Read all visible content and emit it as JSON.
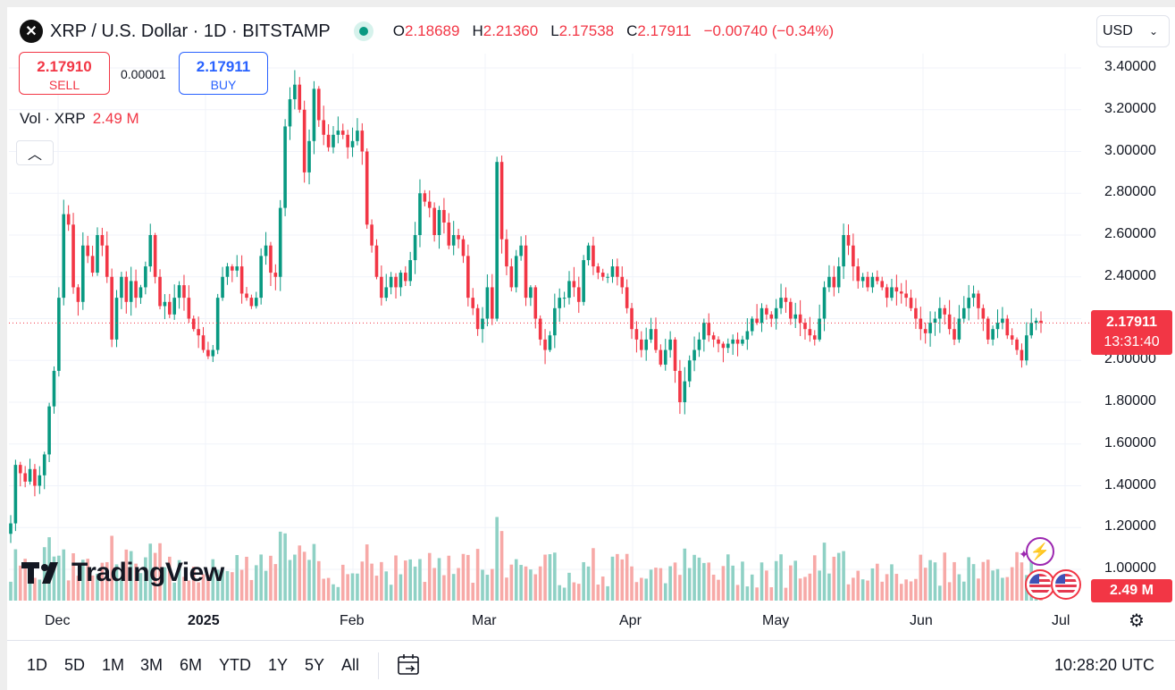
{
  "header": {
    "symbol_logo": "✕",
    "title": "XRP / U.S. Dollar · 1D · BITSTAMP",
    "ohlc": {
      "o_label": "O",
      "o": "2.18689",
      "h_label": "H",
      "h": "2.21360",
      "l_label": "L",
      "l": "2.17538",
      "c_label": "C",
      "c": "2.17911",
      "change": "−0.00740 (−0.34%)"
    }
  },
  "trade": {
    "sell_price": "2.17910",
    "sell_label": "SELL",
    "spread": "0.00001",
    "buy_price": "2.17911",
    "buy_label": "BUY"
  },
  "volume": {
    "label": "Vol · XRP",
    "value": "2.49 M"
  },
  "currency": {
    "value": "USD",
    "icon": "chevron-down-icon"
  },
  "price_axis": [
    "3.40000",
    "3.20000",
    "3.00000",
    "2.80000",
    "2.60000",
    "2.40000",
    "2.20000",
    "2.00000",
    "1.80000",
    "1.60000",
    "1.40000",
    "1.20000",
    "1.00000"
  ],
  "last_price": {
    "price": "2.17911",
    "countdown": "13:31:40"
  },
  "volume_tag": "2.49 M",
  "time_axis": [
    {
      "label": "Dec",
      "bold": false
    },
    {
      "label": "2025",
      "bold": true
    },
    {
      "label": "Feb",
      "bold": false
    },
    {
      "label": "Mar",
      "bold": false
    },
    {
      "label": "Apr",
      "bold": false
    },
    {
      "label": "May",
      "bold": false
    },
    {
      "label": "Jun",
      "bold": false
    },
    {
      "label": "Jul",
      "bold": false
    }
  ],
  "branding": {
    "name": "TradingView"
  },
  "ranges": [
    "1D",
    "5D",
    "1M",
    "3M",
    "6M",
    "YTD",
    "1Y",
    "5Y",
    "All"
  ],
  "clock": "10:28:20 UTC",
  "colors": {
    "up": "#089981",
    "down": "#f23645",
    "up_vol": "#8fd1c5",
    "down_vol": "#f7a9a7",
    "grid": "#f0f3fa",
    "text": "#131722"
  },
  "chart_data": {
    "type": "candlestick",
    "title": "XRP / U.S. Dollar · 1D · BITSTAMP",
    "ylim": [
      0.9,
      3.5
    ],
    "y_ticks": [
      3.4,
      3.2,
      3.0,
      2.8,
      2.6,
      2.4,
      2.2,
      2.0,
      1.8,
      1.6,
      1.4,
      1.2,
      1.0
    ],
    "x_ticks": [
      "Dec",
      "2025",
      "Feb",
      "Mar",
      "Apr",
      "May",
      "Jun",
      "Jul"
    ],
    "last_price": 2.17911,
    "closes": [
      1.22,
      1.5,
      1.46,
      1.42,
      1.48,
      1.4,
      1.45,
      1.55,
      1.78,
      1.95,
      2.3,
      2.7,
      2.65,
      2.35,
      2.28,
      2.55,
      2.5,
      2.42,
      2.6,
      2.55,
      2.4,
      2.1,
      2.3,
      2.4,
      2.28,
      2.38,
      2.3,
      2.35,
      2.45,
      2.6,
      2.4,
      2.26,
      2.28,
      2.22,
      2.3,
      2.36,
      2.3,
      2.2,
      2.15,
      2.12,
      2.05,
      2.02,
      2.05,
      2.3,
      2.4,
      2.45,
      2.43,
      2.45,
      2.32,
      2.3,
      2.26,
      2.3,
      2.5,
      2.55,
      2.42,
      2.4,
      2.73,
      3.12,
      3.25,
      3.32,
      3.2,
      2.9,
      3.05,
      3.3,
      3.15,
      3.08,
      3.02,
      3.08,
      3.1,
      3.08,
      3.02,
      3.05,
      3.1,
      3.0,
      2.65,
      2.55,
      2.4,
      2.3,
      2.35,
      2.4,
      2.35,
      2.42,
      2.38,
      2.48,
      2.6,
      2.8,
      2.76,
      2.73,
      2.6,
      2.72,
      2.66,
      2.55,
      2.6,
      2.58,
      2.5,
      2.3,
      2.25,
      2.15,
      2.2,
      2.35,
      2.2,
      2.95,
      2.58,
      2.45,
      2.35,
      2.5,
      2.55,
      2.3,
      2.35,
      2.2,
      2.1,
      2.05,
      2.12,
      2.25,
      2.3,
      2.3,
      2.38,
      2.35,
      2.28,
      2.48,
      2.55,
      2.45,
      2.42,
      2.4,
      2.4,
      2.45,
      2.4,
      2.35,
      2.25,
      2.15,
      2.1,
      2.05,
      2.1,
      2.15,
      2.05,
      1.98,
      2.05,
      2.1,
      1.95,
      1.8,
      1.9,
      2.0,
      2.05,
      2.1,
      2.18,
      2.12,
      2.1,
      2.08,
      2.06,
      2.08,
      2.1,
      2.08,
      2.1,
      2.14,
      2.2,
      2.18,
      2.25,
      2.22,
      2.2,
      2.25,
      2.3,
      2.28,
      2.2,
      2.22,
      2.18,
      2.15,
      2.12,
      2.1,
      2.2,
      2.35,
      2.4,
      2.35,
      2.45,
      2.6,
      2.55,
      2.45,
      2.38,
      2.4,
      2.35,
      2.4,
      2.38,
      2.35,
      2.3,
      2.35,
      2.33,
      2.32,
      2.3,
      2.25,
      2.2,
      2.15,
      2.13,
      2.18,
      2.2,
      2.25,
      2.22,
      2.15,
      2.1,
      2.2,
      2.25,
      2.3,
      2.32,
      2.25,
      2.2,
      2.1,
      2.15,
      2.18,
      2.2,
      2.12,
      2.1,
      2.05,
      2.0,
      2.12,
      2.18,
      2.19,
      2.18
    ]
  }
}
